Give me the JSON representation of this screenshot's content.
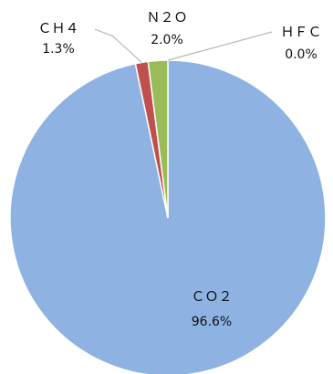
{
  "chart_data": {
    "type": "pie",
    "categories": [
      "ＣＯ２",
      "ＣＨ４",
      "Ｎ２Ｏ",
      "ＨＦＣ"
    ],
    "values": [
      96.6,
      1.3,
      2.0,
      0.0
    ],
    "value_labels": [
      "96.6%",
      "1.3%",
      "2.0%",
      "0.0%"
    ],
    "colors": [
      "#8eb3e3",
      "#c0504d",
      "#9bbb59",
      "#8064a2"
    ],
    "start_angle_deg": 0,
    "direction": "clockwise",
    "slice_border_color": "#ffffff"
  }
}
